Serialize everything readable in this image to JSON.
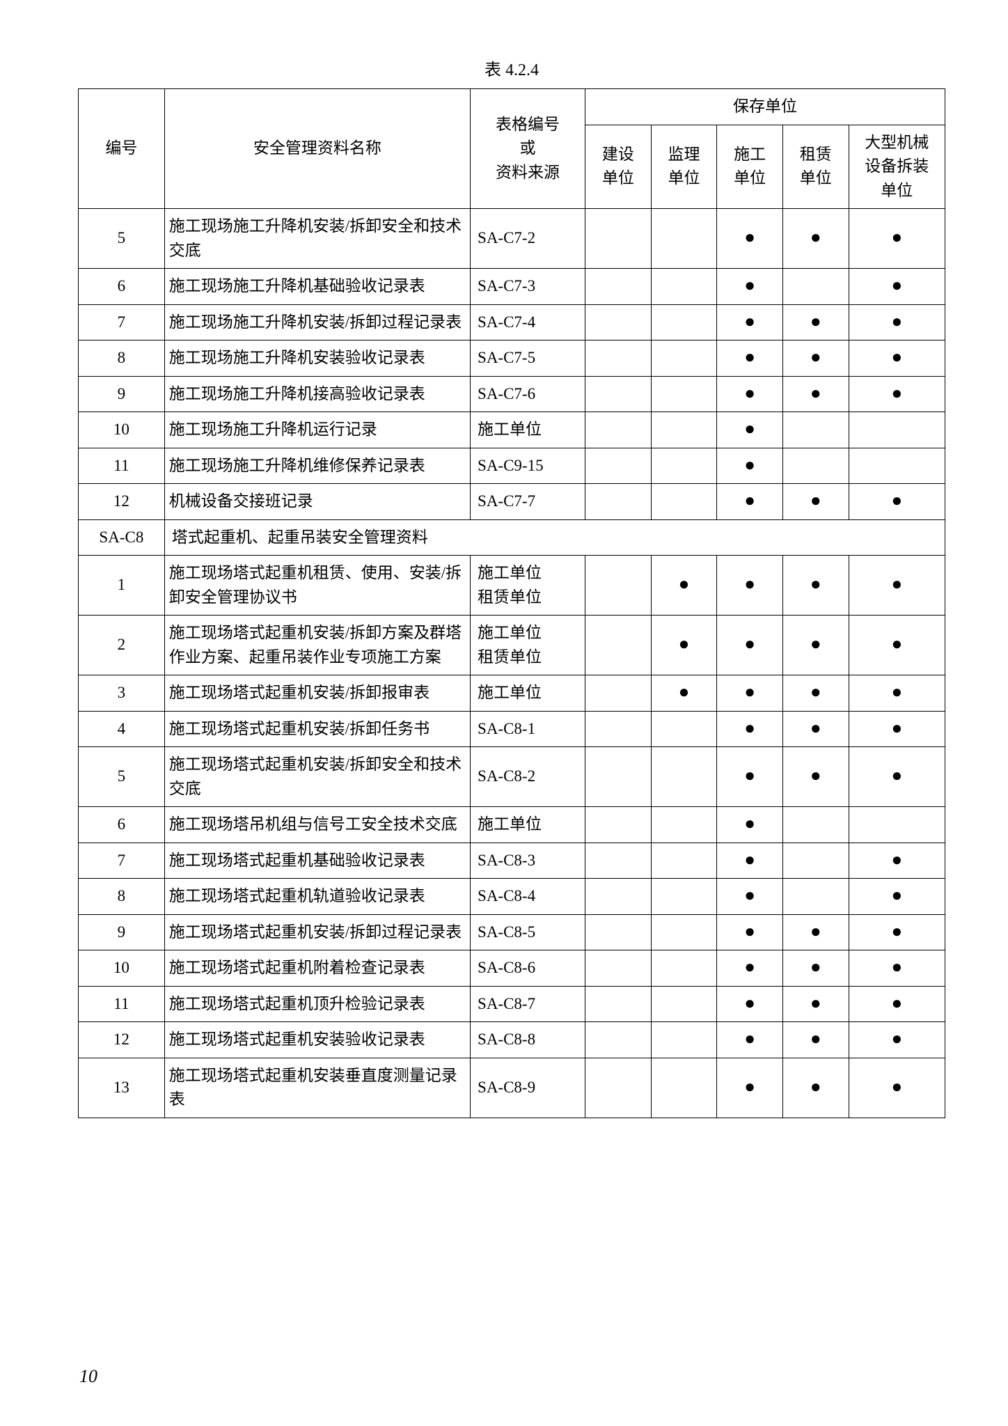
{
  "caption": "表 4.2.4",
  "pageNumber": "10",
  "dotGlyph": "●",
  "headers": {
    "id": "编号",
    "name": "安全管理资料名称",
    "formSource": "表格编号\n或\n资料来源",
    "keepUnit": "保存单位",
    "u1": "建设\n单位",
    "u2": "监理\n单位",
    "u3": "施工\n单位",
    "u4": "租赁\n单位",
    "u5": "大型机械\n设备拆装\n单位"
  },
  "rows": [
    {
      "id": "5",
      "name": "施工现场施工升降机安装/拆卸安全和技术交底",
      "form": "SA-C7-2",
      "u": [
        0,
        0,
        1,
        1,
        1
      ]
    },
    {
      "id": "6",
      "name": "施工现场施工升降机基础验收记录表",
      "form": "SA-C7-3",
      "u": [
        0,
        0,
        1,
        0,
        1
      ]
    },
    {
      "id": "7",
      "name": "施工现场施工升降机安装/拆卸过程记录表",
      "form": "SA-C7-4",
      "u": [
        0,
        0,
        1,
        1,
        1
      ]
    },
    {
      "id": "8",
      "name": "施工现场施工升降机安装验收记录表",
      "form": "SA-C7-5",
      "u": [
        0,
        0,
        1,
        1,
        1
      ]
    },
    {
      "id": "9",
      "name": "施工现场施工升降机接高验收记录表",
      "form": "SA-C7-6",
      "u": [
        0,
        0,
        1,
        1,
        1
      ]
    },
    {
      "id": "10",
      "name": "施工现场施工升降机运行记录",
      "form": "施工单位",
      "u": [
        0,
        0,
        1,
        0,
        0
      ]
    },
    {
      "id": "11",
      "name": "施工现场施工升降机维修保养记录表",
      "form": "SA-C9-15",
      "u": [
        0,
        0,
        1,
        0,
        0
      ]
    },
    {
      "id": "12",
      "name": "机械设备交接班记录",
      "form": "SA-C7-7",
      "u": [
        0,
        0,
        1,
        1,
        1
      ]
    },
    {
      "section": true,
      "id": "SA-C8",
      "name": "塔式起重机、起重吊装安全管理资料"
    },
    {
      "id": "1",
      "name": "施工现场塔式起重机租赁、使用、安装/拆卸安全管理协议书",
      "form": "施工单位\n租赁单位",
      "u": [
        0,
        1,
        1,
        1,
        1
      ]
    },
    {
      "id": "2",
      "name": "施工现场塔式起重机安装/拆卸方案及群塔作业方案、起重吊装作业专项施工方案",
      "form": "施工单位\n租赁单位",
      "u": [
        0,
        1,
        1,
        1,
        1
      ]
    },
    {
      "id": "3",
      "name": "施工现场塔式起重机安装/拆卸报审表",
      "form": "施工单位",
      "u": [
        0,
        1,
        1,
        1,
        1
      ]
    },
    {
      "id": "4",
      "name": "施工现场塔式起重机安装/拆卸任务书",
      "form": "SA-C8-1",
      "u": [
        0,
        0,
        1,
        1,
        1
      ]
    },
    {
      "id": "5",
      "name": "施工现场塔式起重机安装/拆卸安全和技术交底",
      "form": "SA-C8-2",
      "u": [
        0,
        0,
        1,
        1,
        1
      ]
    },
    {
      "id": "6",
      "name": "施工现场塔吊机组与信号工安全技术交底",
      "form": "施工单位",
      "u": [
        0,
        0,
        1,
        0,
        0
      ]
    },
    {
      "id": "7",
      "name": "施工现场塔式起重机基础验收记录表",
      "form": "SA-C8-3",
      "u": [
        0,
        0,
        1,
        0,
        1
      ]
    },
    {
      "id": "8",
      "name": "施工现场塔式起重机轨道验收记录表",
      "form": "SA-C8-4",
      "u": [
        0,
        0,
        1,
        0,
        1
      ]
    },
    {
      "id": "9",
      "name": "施工现场塔式起重机安装/拆卸过程记录表",
      "form": "SA-C8-5",
      "u": [
        0,
        0,
        1,
        1,
        1
      ]
    },
    {
      "id": "10",
      "name": "施工现场塔式起重机附着检查记录表",
      "form": "SA-C8-6",
      "u": [
        0,
        0,
        1,
        1,
        1
      ]
    },
    {
      "id": "11",
      "name": "施工现场塔式起重机顶升检验记录表",
      "form": "SA-C8-7",
      "u": [
        0,
        0,
        1,
        1,
        1
      ]
    },
    {
      "id": "12",
      "name": "施工现场塔式起重机安装验收记录表",
      "form": "SA-C8-8",
      "u": [
        0,
        0,
        1,
        1,
        1
      ]
    },
    {
      "id": "13",
      "name": "施工现场塔式起重机安装垂直度测量记录表",
      "form": "SA-C8-9",
      "u": [
        0,
        0,
        1,
        1,
        1
      ]
    }
  ]
}
